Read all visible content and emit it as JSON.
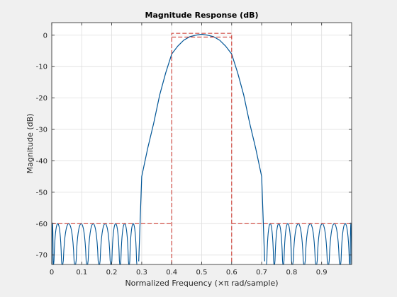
{
  "chart_data": {
    "type": "line",
    "title": "Magnitude Response (dB)",
    "xlabel": "Normalized Frequency (×π rad/sample)",
    "ylabel": "Magnitude (dB)",
    "xlim": [
      0,
      1
    ],
    "ylim": [
      -73,
      4
    ],
    "grid": true,
    "x_ticks": [
      0,
      0.1,
      0.2,
      0.3,
      0.4,
      0.5,
      0.6,
      0.7,
      0.8,
      0.9
    ],
    "x_tick_labels": [
      "0",
      "0.1",
      "0.2",
      "0.3",
      "0.4",
      "0.5",
      "0.6",
      "0.7",
      "0.8",
      "0.9"
    ],
    "y_ticks": [
      0,
      -10,
      -20,
      -30,
      -40,
      -50,
      -60,
      -70
    ],
    "y_tick_labels": [
      "0",
      "-10",
      "-20",
      "-30",
      "-40",
      "-50",
      "-60",
      "-70"
    ],
    "series": [
      {
        "color": "#005596",
        "style": "solid",
        "main_lobe": [
          [
            0.29,
            -72
          ],
          [
            0.3,
            -45
          ],
          [
            0.32,
            -36
          ],
          [
            0.34,
            -28
          ],
          [
            0.36,
            -19
          ],
          [
            0.38,
            -12
          ],
          [
            0.4,
            -6
          ],
          [
            0.42,
            -3.5
          ],
          [
            0.44,
            -1.6
          ],
          [
            0.46,
            -0.5
          ],
          [
            0.48,
            0
          ],
          [
            0.5,
            0.3
          ],
          [
            0.52,
            0
          ],
          [
            0.54,
            -0.5
          ],
          [
            0.56,
            -1.6
          ],
          [
            0.58,
            -3.5
          ],
          [
            0.6,
            -6
          ],
          [
            0.62,
            -12
          ],
          [
            0.64,
            -19
          ],
          [
            0.66,
            -28
          ],
          [
            0.68,
            -36
          ],
          [
            0.7,
            -45
          ],
          [
            0.71,
            -72
          ]
        ],
        "sidelobe_nulls": [
          0.005,
          0.035,
          0.078,
          0.118,
          0.158,
          0.198,
          0.228,
          0.258,
          0.285,
          0.715,
          0.742,
          0.772,
          0.802,
          0.842,
          0.882,
          0.922,
          0.962,
          0.995
        ],
        "sidelobe_peak": -60
      },
      {
        "color": "#c8281e",
        "style": "dashed",
        "segments": [
          [
            [
              0,
              -60
            ],
            [
              0.4,
              -60
            ]
          ],
          [
            [
              0.4,
              -73
            ],
            [
              0.4,
              0.6
            ],
            [
              0.6,
              0.6
            ],
            [
              0.6,
              -73
            ]
          ],
          [
            [
              0.4,
              -0.6
            ],
            [
              0.6,
              -0.6
            ]
          ],
          [
            [
              0.6,
              -60
            ],
            [
              1.0,
              -60
            ]
          ]
        ]
      }
    ]
  }
}
